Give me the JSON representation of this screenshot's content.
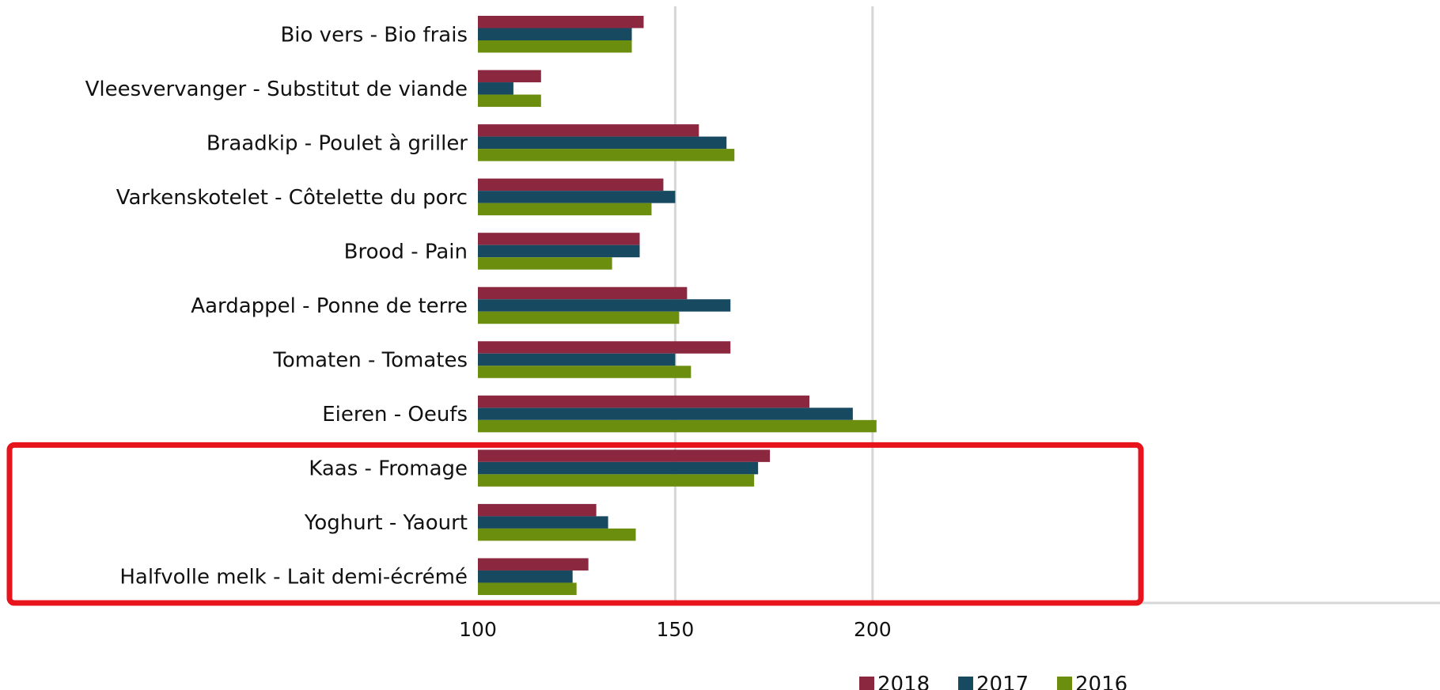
{
  "chart_data": {
    "type": "bar",
    "orientation": "horizontal",
    "categories": [
      "Bio vers - Bio frais",
      "Vleesvervanger - Substitut de viande",
      "Braadkip - Poulet à griller",
      "Varkenskotelet - Côtelette du porc",
      "Brood - Pain",
      "Aardappel - Ponne de terre",
      "Tomaten - Tomates",
      "Eieren - Oeufs",
      "Kaas - Fromage",
      "Yoghurt - Yaourt",
      "Halfvolle melk - Lait demi-écrémé"
    ],
    "series": [
      {
        "name": "2018",
        "color": "#8B2840",
        "values": [
          142,
          116,
          156,
          147,
          141,
          153,
          164,
          184,
          174,
          130,
          128
        ]
      },
      {
        "name": "2017",
        "color": "#174A60",
        "values": [
          139,
          109,
          163,
          150,
          141,
          164,
          150,
          195,
          171,
          133,
          124
        ]
      },
      {
        "name": "2016",
        "color": "#6B8E0E",
        "values": [
          139,
          116,
          165,
          144,
          134,
          151,
          154,
          201,
          170,
          140,
          125
        ]
      }
    ],
    "xlim": [
      100,
      220
    ],
    "xticks": [
      "100",
      "150",
      "200"
    ],
    "grid": true,
    "legend": "bottom-right",
    "highlight_box": {
      "color": "#E8141C",
      "categories": [
        "Kaas - Fromage",
        "Yoghurt - Yaourt",
        "Halfvolle melk - Lait demi-écrémé"
      ]
    }
  }
}
